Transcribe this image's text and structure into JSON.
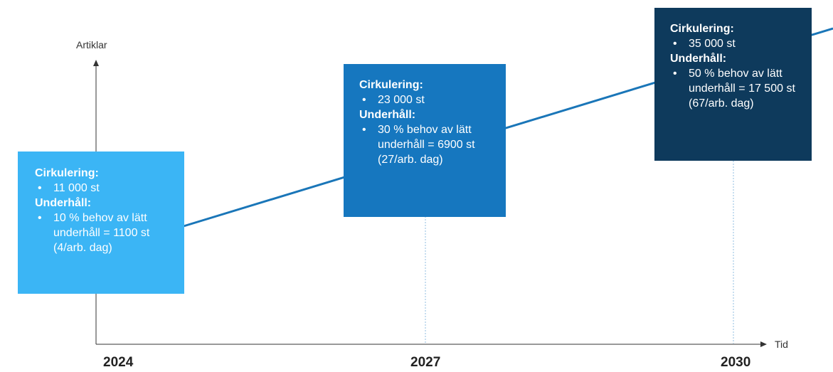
{
  "axis": {
    "y_label": "Artiklar",
    "x_label": "Tid"
  },
  "years": [
    "2024",
    "2027",
    "2030"
  ],
  "colors": {
    "card_2024": "#3bb5f5",
    "card_2027": "#1677bf",
    "card_2030": "#0e3a5c",
    "trend_line": "#1a76b8",
    "axis": "#333333",
    "guide": "#8fbde0"
  },
  "cards": [
    {
      "heading_1": "Cirkulering:",
      "item_1": "11 000 st",
      "heading_2": "Underhåll:",
      "item_2": "10 % behov av lätt underhåll = 1100 st (4/arb. dag)"
    },
    {
      "heading_1": "Cirkulering:",
      "item_1": "23 000 st",
      "heading_2": "Underhåll:",
      "item_2": "30 % behov av lätt underhåll = 6900 st (27/arb. dag)"
    },
    {
      "heading_1": "Cirkulering:",
      "item_1": "35 000 st",
      "heading_2": "Underhåll:",
      "item_2": "50 % behov av lätt underhåll = 17 500 st (67/arb. dag)"
    }
  ]
}
